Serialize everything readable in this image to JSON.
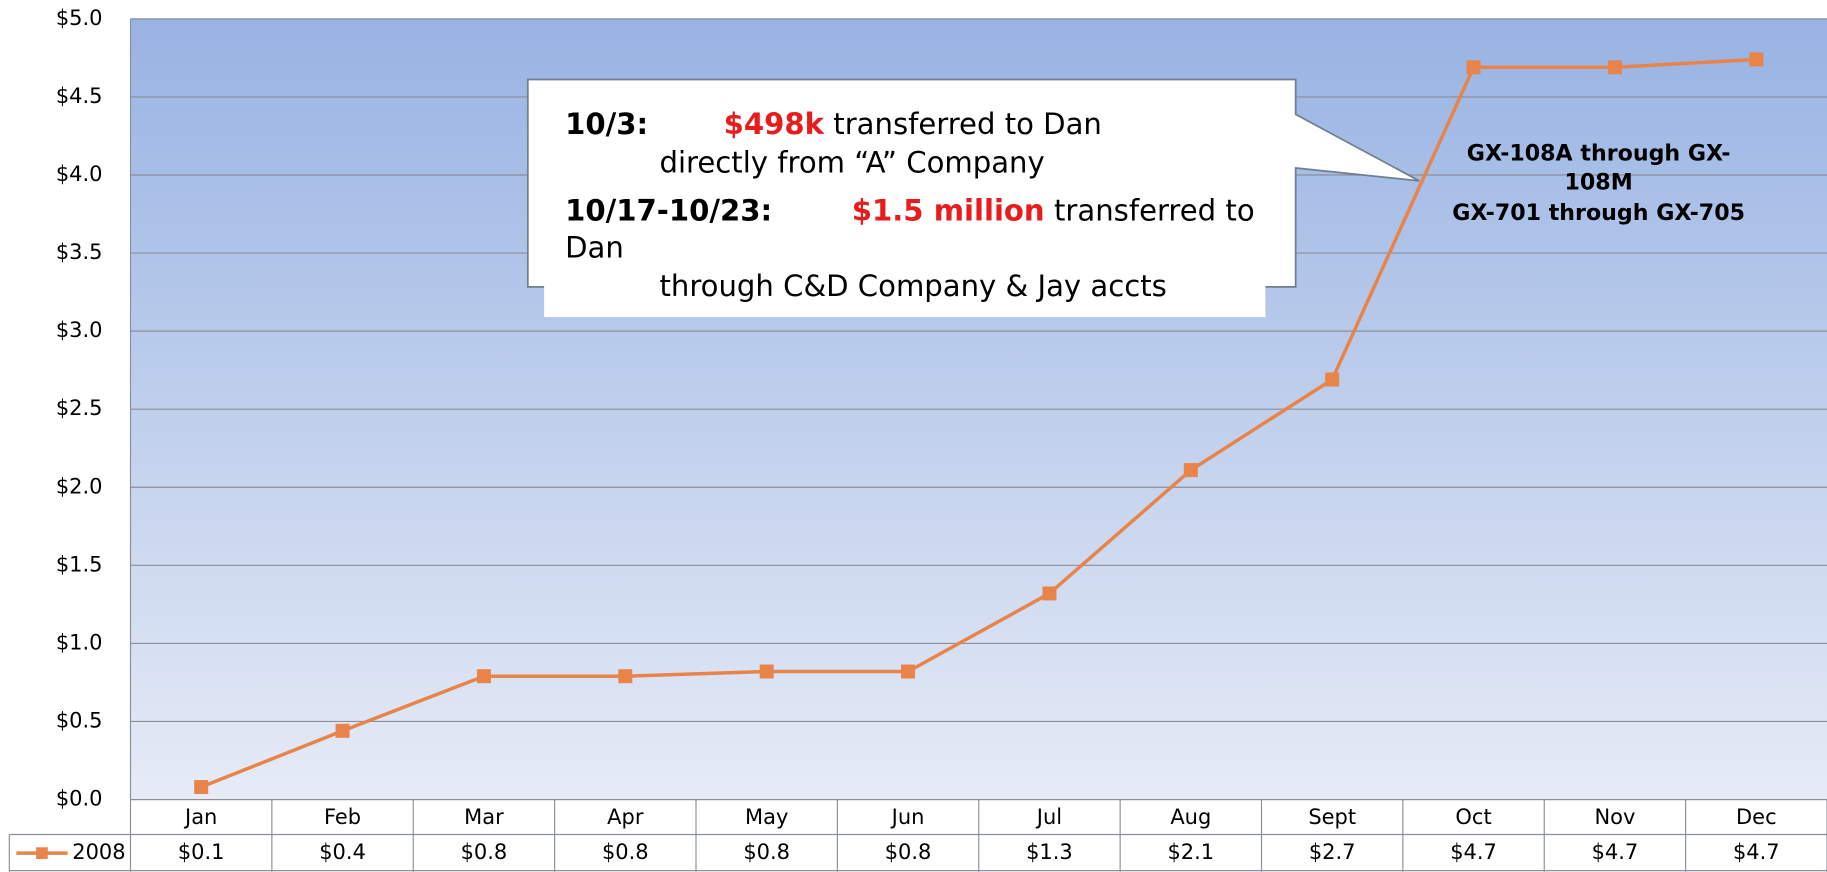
{
  "chart_data": {
    "type": "line",
    "categories": [
      "Jan",
      "Feb",
      "Mar",
      "Apr",
      "May",
      "Jun",
      "Jul",
      "Aug",
      "Sept",
      "Oct",
      "Nov",
      "Dec"
    ],
    "series": [
      {
        "name": "2008",
        "color": "#e8844a",
        "values": [
          0.08,
          0.44,
          0.79,
          0.79,
          0.82,
          0.82,
          1.32,
          2.11,
          2.69,
          4.69,
          4.69,
          4.74
        ],
        "value_labels": [
          "$0.1",
          "$0.4",
          "$0.8",
          "$0.8",
          "$0.8",
          "$0.8",
          "$1.3",
          "$2.1",
          "$2.7",
          "$4.7",
          "$4.7",
          "$4.7"
        ]
      }
    ],
    "ylim": [
      0,
      5
    ],
    "yticks": [
      {
        "value": 0,
        "label": "$0.0"
      },
      {
        "value": 0.5,
        "label": "$0.5"
      },
      {
        "value": 1,
        "label": "$1.0"
      },
      {
        "value": 1.5,
        "label": "$1.5"
      },
      {
        "value": 2,
        "label": "$2.0"
      },
      {
        "value": 2.5,
        "label": "$2.5"
      },
      {
        "value": 3,
        "label": "$3.0"
      },
      {
        "value": 3.5,
        "label": "$3.5"
      },
      {
        "value": 4,
        "label": "$4.0"
      },
      {
        "value": 4.5,
        "label": "$4.5"
      },
      {
        "value": 5,
        "label": "$5.0"
      }
    ],
    "grid": true,
    "callout": [
      {
        "date": "10/3:",
        "amount": "$498k",
        "text": "transferred to Dan"
      },
      {
        "text": "directly from “A” Company"
      },
      {
        "date": "10/17-10/23:",
        "amount": "$1.5 million",
        "text": "transferred to"
      },
      {
        "text": "Dan"
      },
      {
        "text": "through C&D Company & Jay accts"
      }
    ],
    "exhibits": [
      "GX-108A through GX-",
      "108M",
      "GX-701 through GX-705"
    ]
  }
}
